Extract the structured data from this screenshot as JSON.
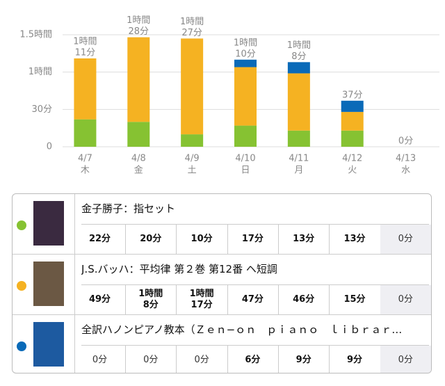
{
  "chart_data": {
    "type": "stacked_bar",
    "categories": [
      "4/7",
      "4/8",
      "4/9",
      "4/10",
      "4/11",
      "4/12",
      "4/13"
    ],
    "weekdays": [
      "木",
      "金",
      "土",
      "日",
      "月",
      "火",
      "水"
    ],
    "series": [
      {
        "name": "金子勝子：指セット",
        "color": "#86c232",
        "values": [
          22,
          20,
          10,
          17,
          13,
          13,
          0
        ]
      },
      {
        "name": "J.S.バッハ：平均律 第２巻 第12番 ヘ短調",
        "color": "#f5b222",
        "values": [
          49,
          68,
          77,
          47,
          46,
          15,
          0
        ]
      },
      {
        "name": "全訳ハノンピアノ教本（Ｚｅｎ−ｏｎ　ｐｉａｎｏ　ｌｉｂｒａｒ…",
        "color": "#0a6ab8",
        "values": [
          0,
          0,
          0,
          6,
          9,
          9,
          0
        ]
      }
    ],
    "totals": [
      71,
      88,
      87,
      70,
      68,
      37,
      0
    ],
    "total_labels": [
      [
        "1時間",
        "11分"
      ],
      [
        "1時間",
        "28分"
      ],
      [
        "1時間",
        "27分"
      ],
      [
        "1時間",
        "10分"
      ],
      [
        "1時間",
        "8分"
      ],
      [
        "37分"
      ],
      [
        "0分"
      ]
    ],
    "ylim": [
      0,
      90
    ],
    "yticks": [
      0,
      {
        "value": 30,
        "label": "30分"
      },
      {
        "value": 60,
        "label": "1時間"
      },
      {
        "value": 90,
        "label": "1.5時間"
      }
    ],
    "grid": true
  },
  "table": {
    "rows": [
      {
        "cells": [
          "22分",
          "20分",
          "10分",
          "17分",
          "13分",
          "13分",
          "0分"
        ]
      },
      {
        "cells": [
          "49分",
          "1時間\n8分",
          "1時間\n17分",
          "47分",
          "46分",
          "15分",
          "0分"
        ]
      },
      {
        "cells": [
          "0分",
          "0分",
          "0分",
          "6分",
          "9分",
          "9分",
          "0分"
        ]
      }
    ]
  }
}
